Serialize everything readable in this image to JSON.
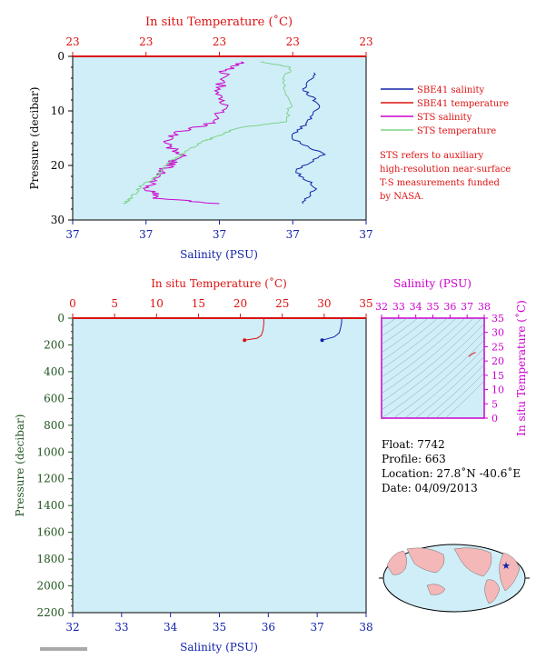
{
  "colors": {
    "plot_bg": "#cfeef8",
    "red": "#dd1111",
    "blue": "#1122aa",
    "magenta": "#cc00cc",
    "green": "#7fd38a",
    "pink_salinity": "#e000e0",
    "dark_green_label": "#225522",
    "land": "#f4b8b8"
  },
  "top_chart": {
    "top_axis_title": "In situ Temperature (˚C)",
    "top_ticks": [
      "23",
      "23",
      "23",
      "23",
      "23"
    ],
    "left_axis_title": "Pressure (decibar)",
    "left_ticks": [
      "0",
      "10",
      "20",
      "30"
    ],
    "bottom_ticks": [
      "37",
      "37",
      "37",
      "37",
      "37"
    ],
    "bottom_axis_title": "Salinity (PSU)"
  },
  "legend": {
    "items": [
      {
        "label": "SBE41 salinity",
        "color": "#1122aa"
      },
      {
        "label": "SBE41 temperature",
        "color": "#dd1111"
      },
      {
        "label": "STS salinity",
        "color": "#cc00cc"
      },
      {
        "label": "STS temperature",
        "color": "#7fd38a"
      }
    ],
    "note_lines": [
      "STS refers to auxiliary",
      "high-resolution near-surface",
      "T-S measurements funded",
      "by NASA."
    ]
  },
  "bottom_chart": {
    "top_axis_title": "In situ Temperature (˚C)",
    "top_ticks": [
      "0",
      "5",
      "10",
      "15",
      "20",
      "25",
      "30",
      "35"
    ],
    "left_axis_title": "Pressure (decibar)",
    "left_ticks": [
      "0",
      "200",
      "400",
      "600",
      "800",
      "1000",
      "1200",
      "1400",
      "1600",
      "1800",
      "2000",
      "2200"
    ],
    "bottom_ticks": [
      "32",
      "33",
      "34",
      "35",
      "36",
      "37",
      "38"
    ],
    "bottom_axis_title": "Salinity (PSU)"
  },
  "ts_chart": {
    "top_axis_title": "Salinity (PSU)",
    "top_ticks": [
      "32",
      "33",
      "34",
      "35",
      "36",
      "37",
      "38"
    ],
    "right_ticks": [
      "0",
      "5",
      "10",
      "15",
      "20",
      "25",
      "30",
      "35"
    ],
    "right_axis_title": "In situ Temperature (˚C)"
  },
  "float_info": {
    "float_line": "Float: 7742",
    "profile_line": "Profile: 663",
    "location_line": "Location: 27.8˚N -40.6˚E",
    "date_line": "Date: 04/09/2013"
  },
  "chart_data": [
    {
      "type": "line",
      "title": "",
      "xlabel": "Salinity (PSU)",
      "x2label": "In situ Temperature (˚C)",
      "ylabel": "Pressure (decibar)",
      "ylim": [
        30,
        0
      ],
      "series": [
        {
          "name": "SBE41 salinity",
          "points": [
            [
              37.18,
              3
            ],
            [
              37.15,
              6
            ],
            [
              37.19,
              9
            ],
            [
              37.16,
              12
            ],
            [
              37.12,
              15
            ],
            [
              37.2,
              18
            ],
            [
              37.13,
              21
            ],
            [
              37.18,
              24
            ],
            [
              37.15,
              27
            ]
          ]
        },
        {
          "name": "SBE41 temperature",
          "points": [
            [
              23.2,
              0
            ]
          ]
        },
        {
          "name": "STS salinity",
          "points": [
            [
              37.0,
              1
            ],
            [
              36.96,
              3
            ],
            [
              36.95,
              6
            ],
            [
              36.96,
              9
            ],
            [
              36.94,
              12
            ],
            [
              36.85,
              14
            ],
            [
              36.82,
              16
            ],
            [
              36.86,
              18
            ],
            [
              36.83,
              20
            ],
            [
              36.8,
              22
            ],
            [
              36.78,
              24
            ],
            [
              36.8,
              26
            ],
            [
              36.95,
              27
            ]
          ]
        },
        {
          "name": "STS temperature",
          "points": [
            [
              23.05,
              1
            ],
            [
              23.12,
              2
            ],
            [
              23.1,
              5
            ],
            [
              23.12,
              9
            ],
            [
              23.11,
              12
            ],
            [
              23.0,
              13
            ],
            [
              22.93,
              15
            ],
            [
              22.9,
              16
            ],
            [
              22.86,
              18
            ],
            [
              22.82,
              20
            ],
            [
              22.8,
              22
            ],
            [
              22.76,
              24
            ],
            [
              22.74,
              26
            ],
            [
              22.72,
              27
            ]
          ]
        }
      ]
    },
    {
      "type": "line",
      "title": "",
      "xlabel": "Salinity (PSU)",
      "x2label": "In situ Temperature (˚C)",
      "ylabel": "Pressure (decibar)",
      "xlim": [
        32,
        38
      ],
      "x2lim": [
        0,
        35
      ],
      "ylim": [
        2200,
        0
      ],
      "series": [
        {
          "name": "SBE41 salinity",
          "axis": "salinity",
          "points": [
            [
              37.5,
              0
            ],
            [
              37.5,
              30
            ],
            [
              37.48,
              70
            ],
            [
              37.45,
              110
            ],
            [
              37.35,
              140
            ],
            [
              37.1,
              165
            ]
          ]
        },
        {
          "name": "SBE41 temperature",
          "axis": "temperature",
          "points": [
            [
              22.8,
              0
            ],
            [
              22.8,
              40
            ],
            [
              22.7,
              90
            ],
            [
              22.5,
              130
            ],
            [
              22.0,
              150
            ],
            [
              20.5,
              165
            ]
          ]
        }
      ]
    },
    {
      "type": "scatter",
      "title": "",
      "xlabel": "Salinity (PSU)",
      "ylabel": "In situ Temperature (˚C)",
      "xlim": [
        32,
        38
      ],
      "ylim": [
        0,
        35
      ],
      "series": [
        {
          "name": "T-S profile",
          "points": [
            [
              37.1,
              21.5
            ],
            [
              37.25,
              22.3
            ],
            [
              37.4,
              22.8
            ],
            [
              37.5,
              23.0
            ]
          ]
        }
      ]
    }
  ]
}
